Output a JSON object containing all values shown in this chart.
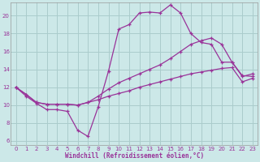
{
  "background_color": "#cce8e8",
  "grid_color": "#aacccc",
  "line_color": "#993399",
  "xlabel": "Windchill (Refroidissement éolien,°C)",
  "xlim": [
    -0.5,
    23.5
  ],
  "ylim": [
    5.5,
    21.5
  ],
  "yticks": [
    6,
    8,
    10,
    12,
    14,
    16,
    18,
    20
  ],
  "xticks": [
    0,
    1,
    2,
    3,
    4,
    5,
    6,
    7,
    8,
    9,
    10,
    11,
    12,
    13,
    14,
    15,
    16,
    17,
    18,
    19,
    20,
    21,
    22,
    23
  ],
  "line1_x": [
    0,
    1,
    2,
    3,
    4,
    5,
    6,
    7,
    8,
    9,
    10,
    11,
    12,
    13,
    14,
    15,
    16,
    17,
    18,
    19,
    20,
    21,
    22,
    23
  ],
  "line1_y": [
    12.0,
    11.0,
    10.2,
    9.5,
    9.5,
    9.3,
    7.2,
    6.5,
    9.8,
    13.8,
    18.5,
    19.0,
    20.3,
    20.4,
    20.3,
    21.2,
    20.3,
    18.0,
    17.0,
    16.8,
    14.8,
    14.8,
    13.3,
    13.2
  ],
  "line2_x": [
    0,
    1,
    2,
    3,
    4,
    5,
    6,
    7,
    8,
    9,
    10,
    11,
    12,
    13,
    14,
    15,
    16,
    17,
    18,
    19,
    20,
    21,
    22,
    23
  ],
  "line2_y": [
    12.0,
    11.2,
    10.3,
    10.1,
    10.1,
    10.1,
    10.0,
    10.3,
    11.0,
    11.8,
    12.5,
    13.0,
    13.5,
    14.0,
    14.5,
    15.2,
    16.0,
    16.8,
    17.2,
    17.5,
    16.8,
    14.8,
    13.2,
    13.5
  ],
  "line3_x": [
    0,
    1,
    2,
    3,
    4,
    5,
    6,
    7,
    8,
    9,
    10,
    11,
    12,
    13,
    14,
    15,
    16,
    17,
    18,
    19,
    20,
    21,
    22,
    23
  ],
  "line3_y": [
    12.0,
    11.2,
    10.3,
    10.1,
    10.1,
    10.1,
    10.0,
    10.3,
    10.6,
    11.0,
    11.3,
    11.6,
    12.0,
    12.3,
    12.6,
    12.9,
    13.2,
    13.5,
    13.7,
    13.9,
    14.1,
    14.2,
    12.6,
    13.0
  ]
}
